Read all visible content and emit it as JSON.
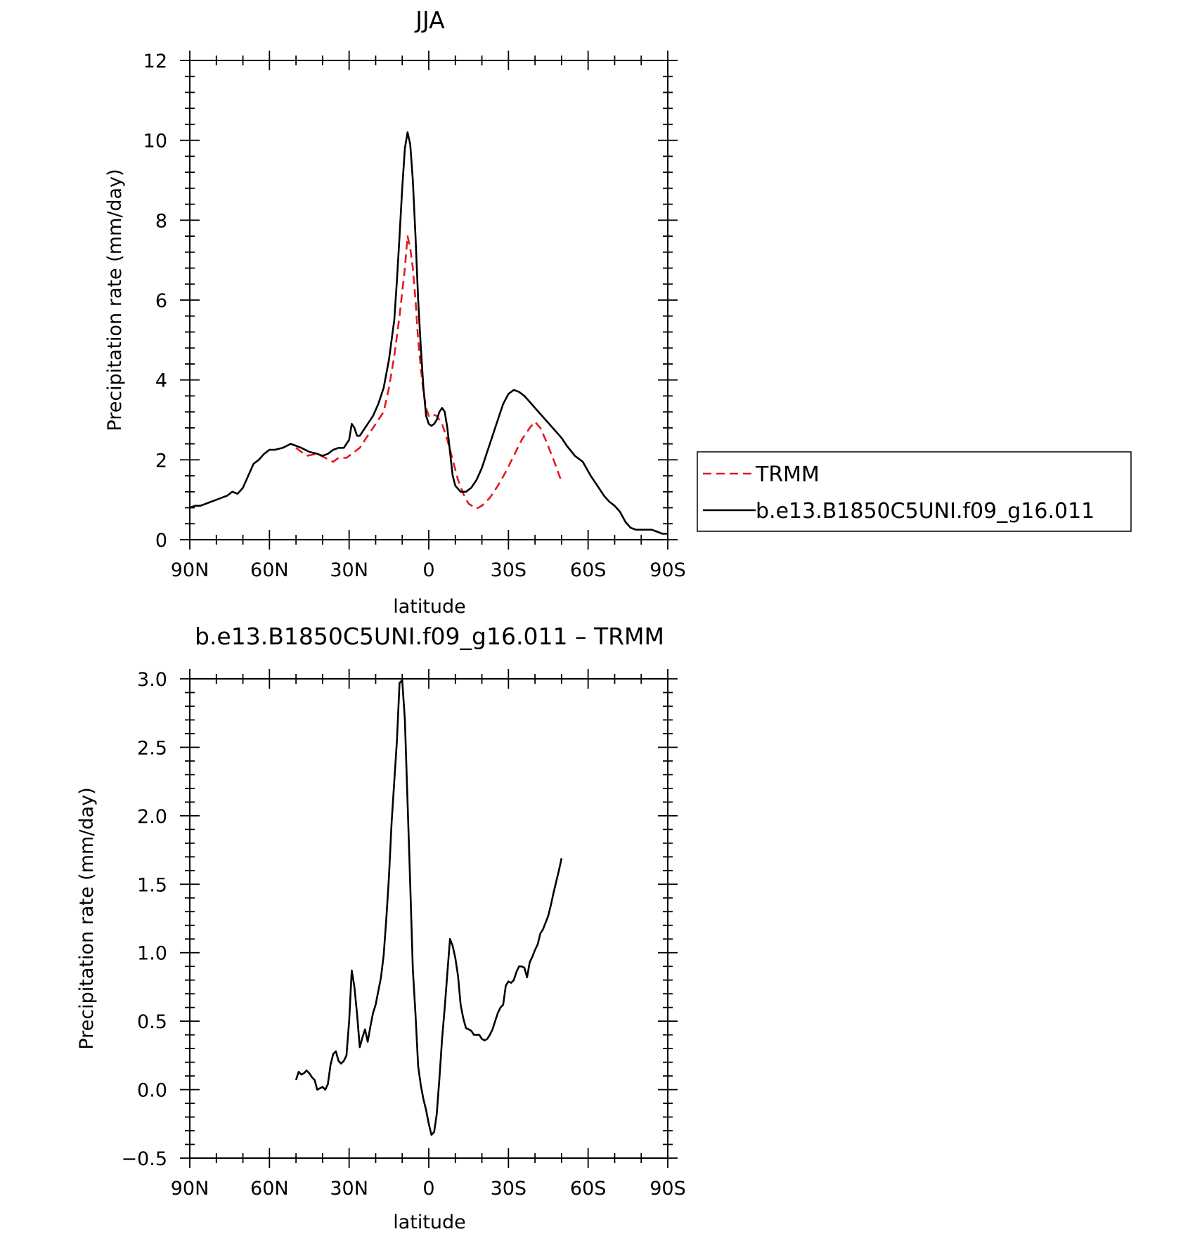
{
  "chart_data": [
    {
      "type": "line",
      "title": "JJA",
      "xlabel": "latitude",
      "ylabel": "Precipitation rate (mm/day)",
      "xlim": [
        90,
        -90
      ],
      "ylim": [
        0,
        12
      ],
      "x_ticks": [
        90,
        60,
        30,
        0,
        -30,
        -60,
        -90
      ],
      "x_tick_labels": [
        "90N",
        "60N",
        "30N",
        "0",
        "30S",
        "60S",
        "90S"
      ],
      "y_ticks": [
        0,
        2,
        4,
        6,
        8,
        10,
        12
      ],
      "y_tick_labels": [
        "0",
        "2",
        "4",
        "6",
        "8",
        "10",
        "12"
      ],
      "legend": "right-of-plot",
      "series": [
        {
          "name": "TRMM",
          "color": "#e41a1c",
          "dash": "dashed",
          "x": [
            50,
            46,
            42,
            39,
            36,
            34,
            31,
            28,
            26,
            23,
            21,
            19,
            17,
            15,
            13,
            11,
            9,
            8,
            7,
            6,
            5,
            4,
            3,
            2,
            1,
            0,
            -1,
            -3,
            -5,
            -7,
            -9,
            -11,
            -13,
            -15,
            -18,
            -20,
            -23,
            -26,
            -29,
            -32,
            -35,
            -38,
            -40,
            -42,
            -44,
            -47,
            -50
          ],
          "y": [
            2.3,
            2.1,
            2.15,
            2.05,
            1.95,
            2.05,
            2.05,
            2.2,
            2.3,
            2.6,
            2.8,
            3.0,
            3.2,
            3.8,
            4.6,
            5.6,
            6.8,
            7.6,
            7.3,
            6.8,
            6.0,
            5.0,
            4.3,
            3.7,
            3.3,
            3.1,
            3.15,
            3.1,
            2.9,
            2.5,
            2.0,
            1.5,
            1.15,
            0.9,
            0.78,
            0.85,
            1.05,
            1.35,
            1.7,
            2.1,
            2.5,
            2.8,
            2.95,
            2.8,
            2.5,
            2.0,
            1.45
          ]
        },
        {
          "name": "b.e13.B1850C5UNI.f09_g16.011",
          "color": "#000000",
          "dash": "solid",
          "x": [
            90,
            88,
            86,
            84,
            82,
            80,
            78,
            76,
            74,
            72,
            70,
            68,
            66,
            64,
            62,
            60,
            58,
            55,
            52,
            50,
            48,
            45,
            42,
            40,
            38,
            36,
            34,
            32,
            30,
            29,
            28,
            27,
            26,
            25,
            23,
            21,
            19,
            17,
            15,
            13,
            12,
            11,
            10,
            9,
            8,
            7,
            6,
            5,
            4,
            3,
            2,
            1,
            0,
            -1,
            -2,
            -3,
            -4,
            -5,
            -6,
            -7,
            -8,
            -9,
            -10,
            -12,
            -14,
            -16,
            -18,
            -20,
            -22,
            -24,
            -26,
            -28,
            -30,
            -32,
            -34,
            -36,
            -38,
            -40,
            -42,
            -44,
            -46,
            -48,
            -50,
            -52,
            -55,
            -58,
            -61,
            -64,
            -66,
            -68,
            -70,
            -72,
            -74,
            -76,
            -78,
            -80,
            -82,
            -84,
            -86,
            -88,
            -90
          ],
          "y": [
            0.8,
            0.85,
            0.85,
            0.9,
            0.95,
            1.0,
            1.05,
            1.1,
            1.2,
            1.15,
            1.3,
            1.6,
            1.9,
            2.0,
            2.15,
            2.25,
            2.25,
            2.3,
            2.4,
            2.35,
            2.3,
            2.2,
            2.15,
            2.1,
            2.15,
            2.25,
            2.3,
            2.3,
            2.5,
            2.9,
            2.8,
            2.6,
            2.6,
            2.7,
            2.9,
            3.1,
            3.4,
            3.8,
            4.5,
            5.5,
            6.5,
            7.6,
            8.8,
            9.8,
            10.2,
            9.9,
            9.0,
            7.6,
            6.0,
            4.8,
            3.8,
            3.1,
            2.9,
            2.85,
            2.9,
            3.0,
            3.2,
            3.3,
            3.2,
            2.8,
            2.2,
            1.6,
            1.35,
            1.2,
            1.2,
            1.3,
            1.5,
            1.8,
            2.2,
            2.6,
            3.0,
            3.4,
            3.65,
            3.75,
            3.7,
            3.6,
            3.45,
            3.3,
            3.15,
            3.0,
            2.85,
            2.7,
            2.55,
            2.35,
            2.1,
            1.95,
            1.6,
            1.3,
            1.1,
            0.95,
            0.85,
            0.7,
            0.45,
            0.3,
            0.25,
            0.25,
            0.25,
            0.25,
            0.2,
            0.15,
            0.15
          ]
        }
      ]
    },
    {
      "type": "line",
      "title": "b.e13.B1850C5UNI.f09_g16.011 – TRMM",
      "xlabel": "latitude",
      "ylabel": "Precipitation rate (mm/day)",
      "xlim": [
        90,
        -90
      ],
      "ylim": [
        -0.5,
        3.0
      ],
      "x_ticks": [
        90,
        60,
        30,
        0,
        -30,
        -60,
        -90
      ],
      "x_tick_labels": [
        "90N",
        "60N",
        "30N",
        "0",
        "30S",
        "60S",
        "90S"
      ],
      "y_ticks": [
        -0.5,
        0.0,
        0.5,
        1.0,
        1.5,
        2.0,
        2.5,
        3.0
      ],
      "y_tick_labels": [
        "−0.5",
        "0.0",
        "0.5",
        "1.0",
        "1.5",
        "2.0",
        "2.5",
        "3.0"
      ],
      "series": [
        {
          "color": "#000000",
          "dash": "solid",
          "x": [
            50,
            49,
            48,
            47,
            46,
            45,
            44,
            43,
            42,
            41,
            40,
            39,
            38,
            37,
            36,
            35,
            34,
            33,
            32,
            31,
            30,
            29,
            28,
            27,
            26,
            25,
            24,
            23,
            22,
            21,
            20,
            19,
            18,
            17,
            16,
            15,
            14,
            13,
            12,
            11,
            10,
            9,
            8,
            7,
            6,
            5,
            4,
            3,
            2,
            1,
            0,
            -1,
            -2,
            -3,
            -4,
            -5,
            -6,
            -7,
            -8,
            -9,
            -10,
            -11,
            -12,
            -13,
            -14,
            -15,
            -16,
            -17,
            -18,
            -19,
            -20,
            -21,
            -22,
            -23,
            -24,
            -25,
            -26,
            -27,
            -28,
            -29,
            -30,
            -31,
            -32,
            -33,
            -34,
            -35,
            -36,
            -37,
            -38,
            -39,
            -40,
            -41,
            -42,
            -43,
            -44,
            -45,
            -46,
            -47,
            -48,
            -49,
            -50
          ],
          "y": [
            0.07,
            0.13,
            0.11,
            0.12,
            0.14,
            0.12,
            0.09,
            0.07,
            0.0,
            0.01,
            0.02,
            0.0,
            0.04,
            0.18,
            0.26,
            0.28,
            0.21,
            0.19,
            0.21,
            0.25,
            0.5,
            0.87,
            0.75,
            0.55,
            0.31,
            0.38,
            0.44,
            0.35,
            0.46,
            0.56,
            0.62,
            0.72,
            0.82,
            0.98,
            1.25,
            1.55,
            1.95,
            2.25,
            2.55,
            2.97,
            2.99,
            2.7,
            2.1,
            1.5,
            0.88,
            0.55,
            0.17,
            0.03,
            -0.07,
            -0.15,
            -0.25,
            -0.33,
            -0.31,
            -0.18,
            0.08,
            0.37,
            0.6,
            0.85,
            1.1,
            1.05,
            0.96,
            0.83,
            0.62,
            0.52,
            0.45,
            0.44,
            0.43,
            0.4,
            0.4,
            0.4,
            0.37,
            0.36,
            0.37,
            0.4,
            0.44,
            0.5,
            0.56,
            0.6,
            0.62,
            0.76,
            0.79,
            0.78,
            0.8,
            0.86,
            0.9,
            0.9,
            0.89,
            0.82,
            0.93,
            0.97,
            1.02,
            1.06,
            1.14,
            1.17,
            1.22,
            1.27,
            1.35,
            1.44,
            1.52,
            1.6,
            1.69
          ]
        }
      ]
    }
  ],
  "legend_labels": [
    "TRMM",
    "b.e13.B1850C5UNI.f09_g16.011"
  ]
}
